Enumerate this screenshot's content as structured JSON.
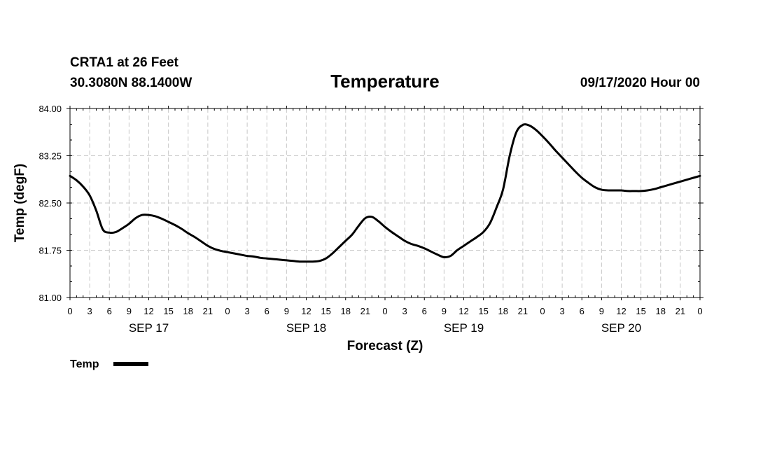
{
  "header": {
    "station": "CRTA1 at 26 Feet",
    "location": "30.3080N 88.1400W",
    "title": "Temperature",
    "run": "09/17/2020 Hour 00"
  },
  "chart_data": {
    "type": "line",
    "title": "Temperature",
    "xlabel": "Forecast (Z)",
    "ylabel": "Temp (degF)",
    "ylim": [
      81.0,
      84.0
    ],
    "yticks": [
      "81.00",
      "81.75",
      "82.50",
      "83.25",
      "84.00"
    ],
    "xlim_hours": [
      0,
      96
    ],
    "x_tick_labels": [
      "0",
      "3",
      "6",
      "9",
      "12",
      "15",
      "18",
      "21",
      "0",
      "3",
      "6",
      "9",
      "12",
      "15",
      "18",
      "21",
      "0",
      "3",
      "6",
      "9",
      "12",
      "15",
      "18",
      "21",
      "0",
      "3",
      "6",
      "9",
      "12",
      "15",
      "18",
      "21",
      "0"
    ],
    "day_labels": [
      {
        "label": "SEP 17",
        "hour": 12
      },
      {
        "label": "SEP 18",
        "hour": 36
      },
      {
        "label": "SEP 19",
        "hour": 60
      },
      {
        "label": "SEP 20",
        "hour": 84
      }
    ],
    "grid": true,
    "legend_position": "bottom-left",
    "series": [
      {
        "name": "Temp",
        "color": "#000000",
        "x_hours": [
          0,
          1,
          2,
          3,
          4,
          5,
          6,
          7,
          8,
          9,
          10,
          11,
          12,
          13,
          14,
          15,
          16,
          17,
          18,
          19,
          20,
          21,
          22,
          23,
          24,
          25,
          26,
          27,
          28,
          29,
          30,
          31,
          32,
          33,
          34,
          35,
          36,
          37,
          38,
          39,
          40,
          41,
          42,
          43,
          44,
          45,
          46,
          47,
          48,
          49,
          50,
          51,
          52,
          53,
          54,
          55,
          56,
          57,
          58,
          59,
          60,
          61,
          62,
          63,
          64,
          65,
          66,
          67,
          68,
          69,
          70,
          71,
          72,
          73,
          74,
          75,
          76,
          77,
          78,
          79,
          80,
          81,
          82,
          83,
          84,
          85,
          86,
          87,
          88,
          89,
          90,
          91,
          92,
          93,
          94,
          95,
          96
        ],
        "values": [
          82.93,
          82.86,
          82.76,
          82.62,
          82.38,
          82.08,
          82.03,
          82.04,
          82.1,
          82.17,
          82.26,
          82.31,
          82.31,
          82.29,
          82.25,
          82.2,
          82.15,
          82.09,
          82.02,
          81.96,
          81.89,
          81.82,
          81.77,
          81.74,
          81.72,
          81.7,
          81.68,
          81.66,
          81.65,
          81.63,
          81.62,
          81.61,
          81.6,
          81.59,
          81.58,
          81.57,
          81.57,
          81.57,
          81.58,
          81.62,
          81.7,
          81.8,
          81.9,
          82.0,
          82.14,
          82.26,
          82.28,
          82.21,
          82.12,
          82.04,
          81.97,
          81.9,
          81.85,
          81.82,
          81.78,
          81.73,
          81.68,
          81.64,
          81.66,
          81.75,
          81.82,
          81.89,
          81.96,
          82.04,
          82.18,
          82.43,
          82.72,
          83.25,
          83.62,
          83.74,
          83.73,
          83.66,
          83.56,
          83.45,
          83.33,
          83.22,
          83.11,
          83.0,
          82.9,
          82.82,
          82.75,
          82.71,
          82.7,
          82.7,
          82.7,
          82.69,
          82.69,
          82.69,
          82.7,
          82.72,
          82.75,
          82.78,
          82.81,
          82.84,
          82.87,
          82.9,
          82.93
        ]
      }
    ]
  }
}
